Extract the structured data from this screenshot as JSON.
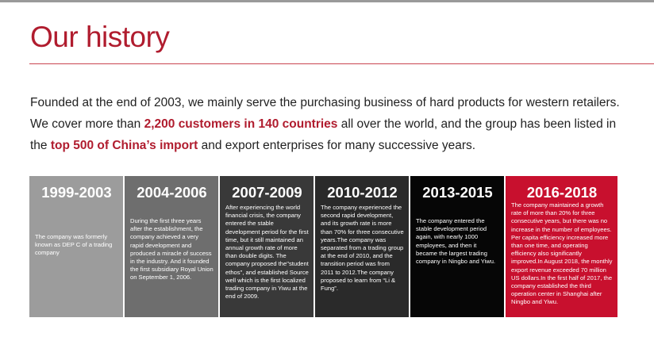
{
  "page": {
    "title": "Our history",
    "intro": {
      "part1": "Founded at the end of 2003, we mainly serve the purchasing business of hard products for western retailers. We cover more than ",
      "highlight1": "2,200 customers in 140 countries",
      "part2": " all over the world, and the group has been listed in the ",
      "highlight2": "top 500 of China’s import",
      "part3": " and export enterprises for many successive years."
    },
    "colors": {
      "accent": "#b01c2e",
      "last_card": "#c8102e"
    }
  },
  "timeline": [
    {
      "period": "1999-2003",
      "text": "The company was formerly known as DEP C of a trading company"
    },
    {
      "period": "2004-2006",
      "text": "During the first three years after the establishment, the company achieved a very rapid development and produced a miracle of success in the industry. And it founded the first subsidiary Royal Union on September 1, 2006."
    },
    {
      "period": "2007-2009",
      "text": "After experiencing the world financial crisis, the company entered the stable development period for the first time, but it still maintained an annual growth rate of more than double digits. The company proposed the\"student ethos\", and established Source well which is the first localized trading company in Yiwu at the end of 2009."
    },
    {
      "period": "2010-2012",
      "text": "The company experienced the second rapid development, and its growth rate is more than 70% for three consecutive years.The company was separated from a trading group at the end of 2010, and the transition period was from 2011 to 2012.The company proposed to learn from “Li & Fung”."
    },
    {
      "period": "2013-2015",
      "text": "The company entered the stable development period again, with nearly 1000 employees, and then it became the largest trading company in Ningbo and Yiwu."
    },
    {
      "period": "2016-2018",
      "text": "The company maintained a growth rate of more than 20% for three consecutive years, but there was no increase in the number of employees. Per capita efficiency increased more than one time, and operating efficiency also significantly improved.In August 2018, the monthly export revenue exceeded 70 million US dollars.In the first half of 2017, the company established the third operation center in Shanghai after Ningbo and Yiwu."
    }
  ]
}
